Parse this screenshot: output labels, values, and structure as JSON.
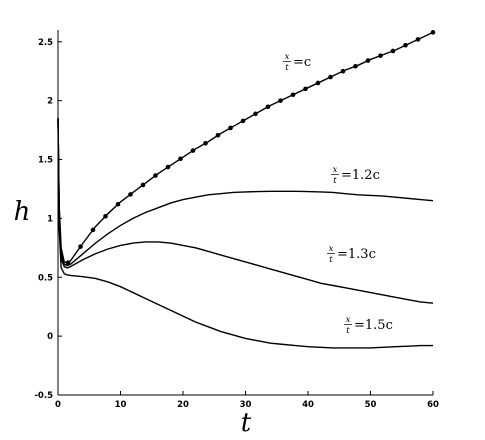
{
  "chart_data": {
    "type": "line",
    "xlabel": "t",
    "ylabel": "h",
    "xlim": [
      0,
      60
    ],
    "ylim": [
      -0.5,
      2.6
    ],
    "xticks": [
      "0",
      "10",
      "20",
      "30",
      "40",
      "50",
      "60"
    ],
    "yticks": [
      "-0.5",
      "0",
      "0.5",
      "1",
      "1.5",
      "2",
      "2.5"
    ],
    "grid": false,
    "legend": "none",
    "series": [
      {
        "annotation": {
          "frac_num": "x",
          "frac_den": "t",
          "rest": "=c"
        },
        "markers": true,
        "x": [
          0,
          0.2,
          0.5,
          1,
          1.5,
          2,
          4,
          6,
          8,
          10,
          12,
          14,
          16,
          18,
          20,
          22,
          24,
          26,
          28,
          30,
          32,
          34,
          36,
          38,
          40,
          42,
          44,
          46,
          48,
          50,
          52,
          54,
          56,
          58,
          60
        ],
        "y": [
          1.85,
          1.1,
          0.75,
          0.63,
          0.62,
          0.64,
          0.79,
          0.93,
          1.04,
          1.14,
          1.22,
          1.3,
          1.38,
          1.45,
          1.52,
          1.59,
          1.65,
          1.72,
          1.78,
          1.84,
          1.9,
          1.96,
          2.01,
          2.06,
          2.11,
          2.16,
          2.21,
          2.26,
          2.3,
          2.35,
          2.39,
          2.43,
          2.48,
          2.53,
          2.58
        ],
        "marker_x": [
          1.6,
          3.6,
          5.6,
          7.6,
          9.6,
          11.6,
          13.6,
          15.6,
          17.6,
          19.6,
          21.6,
          23.6,
          25.6,
          27.6,
          29.6,
          31.6,
          33.6,
          35.6,
          37.6,
          39.6,
          41.6,
          43.6,
          45.6,
          47.6,
          49.6,
          51.6,
          53.6,
          55.6,
          57.6,
          60
        ]
      },
      {
        "annotation": {
          "frac_num": "x",
          "frac_den": "t",
          "rest": "=1.2c"
        },
        "markers": false,
        "x": [
          0,
          0.2,
          0.5,
          1,
          1.5,
          2,
          4,
          6,
          8,
          10,
          12,
          14,
          16,
          18,
          20,
          22,
          24,
          26,
          28,
          30,
          32,
          34,
          36,
          38,
          40,
          42,
          44,
          46,
          48,
          50,
          52,
          54,
          56,
          58,
          60
        ],
        "y": [
          1.85,
          1.05,
          0.7,
          0.61,
          0.6,
          0.61,
          0.7,
          0.79,
          0.87,
          0.94,
          1.0,
          1.05,
          1.09,
          1.13,
          1.16,
          1.18,
          1.2,
          1.21,
          1.22,
          1.225,
          1.228,
          1.23,
          1.23,
          1.23,
          1.228,
          1.225,
          1.22,
          1.21,
          1.2,
          1.195,
          1.19,
          1.18,
          1.17,
          1.16,
          1.15
        ]
      },
      {
        "annotation": {
          "frac_num": "x",
          "frac_den": "t",
          "rest": "=1.3c"
        },
        "markers": false,
        "x": [
          0,
          0.2,
          0.5,
          1,
          1.5,
          2,
          4,
          6,
          8,
          10,
          12,
          14,
          16,
          18,
          20,
          22,
          24,
          26,
          28,
          30,
          32,
          34,
          36,
          38,
          40,
          42,
          44,
          46,
          48,
          50,
          52,
          54,
          56,
          58,
          60
        ],
        "y": [
          1.85,
          1.0,
          0.66,
          0.59,
          0.58,
          0.59,
          0.65,
          0.7,
          0.74,
          0.77,
          0.79,
          0.8,
          0.8,
          0.79,
          0.77,
          0.75,
          0.72,
          0.69,
          0.66,
          0.63,
          0.6,
          0.57,
          0.54,
          0.51,
          0.48,
          0.45,
          0.43,
          0.41,
          0.39,
          0.37,
          0.35,
          0.33,
          0.31,
          0.29,
          0.28
        ]
      },
      {
        "annotation": {
          "frac_num": "x",
          "frac_den": "t",
          "rest": "=1.5c"
        },
        "markers": false,
        "x": [
          0,
          0.2,
          0.5,
          1,
          1.5,
          2,
          4,
          6,
          8,
          10,
          12,
          14,
          16,
          18,
          20,
          22,
          24,
          26,
          28,
          30,
          32,
          34,
          36,
          38,
          40,
          42,
          44,
          46,
          48,
          50,
          52,
          54,
          56,
          58,
          60
        ],
        "y": [
          1.85,
          0.9,
          0.58,
          0.53,
          0.52,
          0.515,
          0.505,
          0.49,
          0.46,
          0.42,
          0.37,
          0.32,
          0.27,
          0.22,
          0.17,
          0.12,
          0.08,
          0.04,
          0.01,
          -0.02,
          -0.04,
          -0.06,
          -0.07,
          -0.08,
          -0.09,
          -0.095,
          -0.1,
          -0.1,
          -0.1,
          -0.1,
          -0.095,
          -0.09,
          -0.085,
          -0.08,
          -0.08
        ]
      }
    ]
  }
}
